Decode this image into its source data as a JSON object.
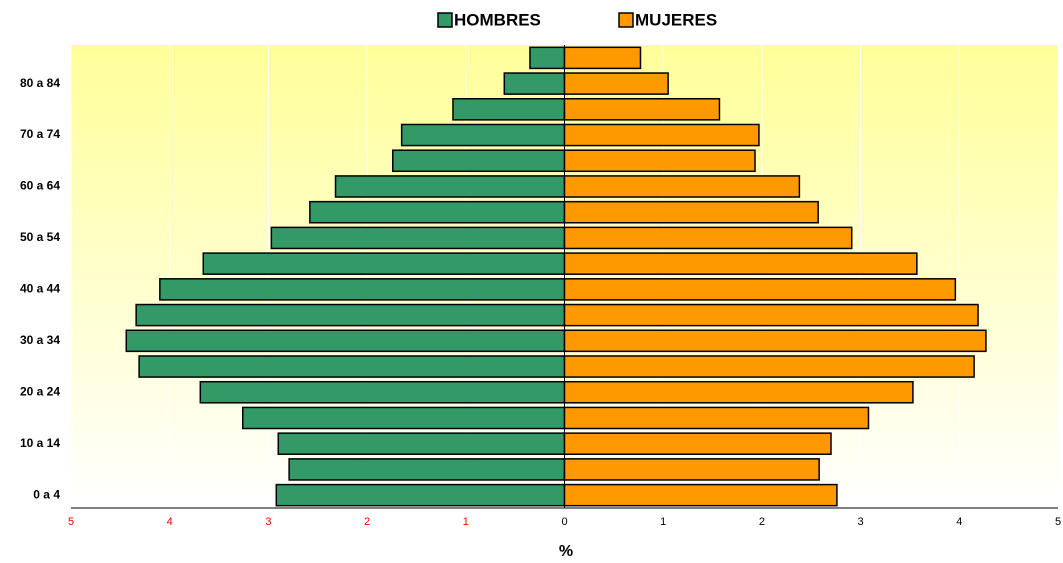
{
  "chart_data": {
    "type": "pyramid",
    "categories": [
      "0 a 4",
      null,
      "10 a 14",
      null,
      "20 a 24",
      null,
      "30 a 34",
      null,
      "40 a 44",
      null,
      "50 a 54",
      null,
      "60 a 64",
      null,
      "70 a 74",
      null,
      "80 a 84",
      null
    ],
    "series": [
      {
        "name": "HOMBRES",
        "color": "#339966",
        "values": [
          -2.92,
          -2.79,
          -2.9,
          -3.26,
          -3.69,
          -4.31,
          -4.44,
          -4.34,
          -4.1,
          -3.66,
          -2.97,
          -2.58,
          -2.32,
          -1.74,
          -1.65,
          -1.13,
          -0.61,
          -0.35
        ]
      },
      {
        "name": "MUJERES",
        "color": "#ff9900",
        "values": [
          2.76,
          2.58,
          2.7,
          3.08,
          3.53,
          4.15,
          4.27,
          4.19,
          3.96,
          3.57,
          2.91,
          2.57,
          2.38,
          1.93,
          1.97,
          1.57,
          1.05,
          0.77
        ]
      }
    ],
    "xlabel": "%",
    "xlim": [
      -5,
      5
    ],
    "xticks": [
      {
        "value": -5,
        "label": "5"
      },
      {
        "value": -4,
        "label": "4"
      },
      {
        "value": -3,
        "label": "3"
      },
      {
        "value": -2,
        "label": "2"
      },
      {
        "value": -1,
        "label": "1"
      },
      0,
      1,
      2,
      3,
      4,
      5
    ],
    "negative_tick_color": "#ff0000",
    "grid": true,
    "legend": "top"
  }
}
